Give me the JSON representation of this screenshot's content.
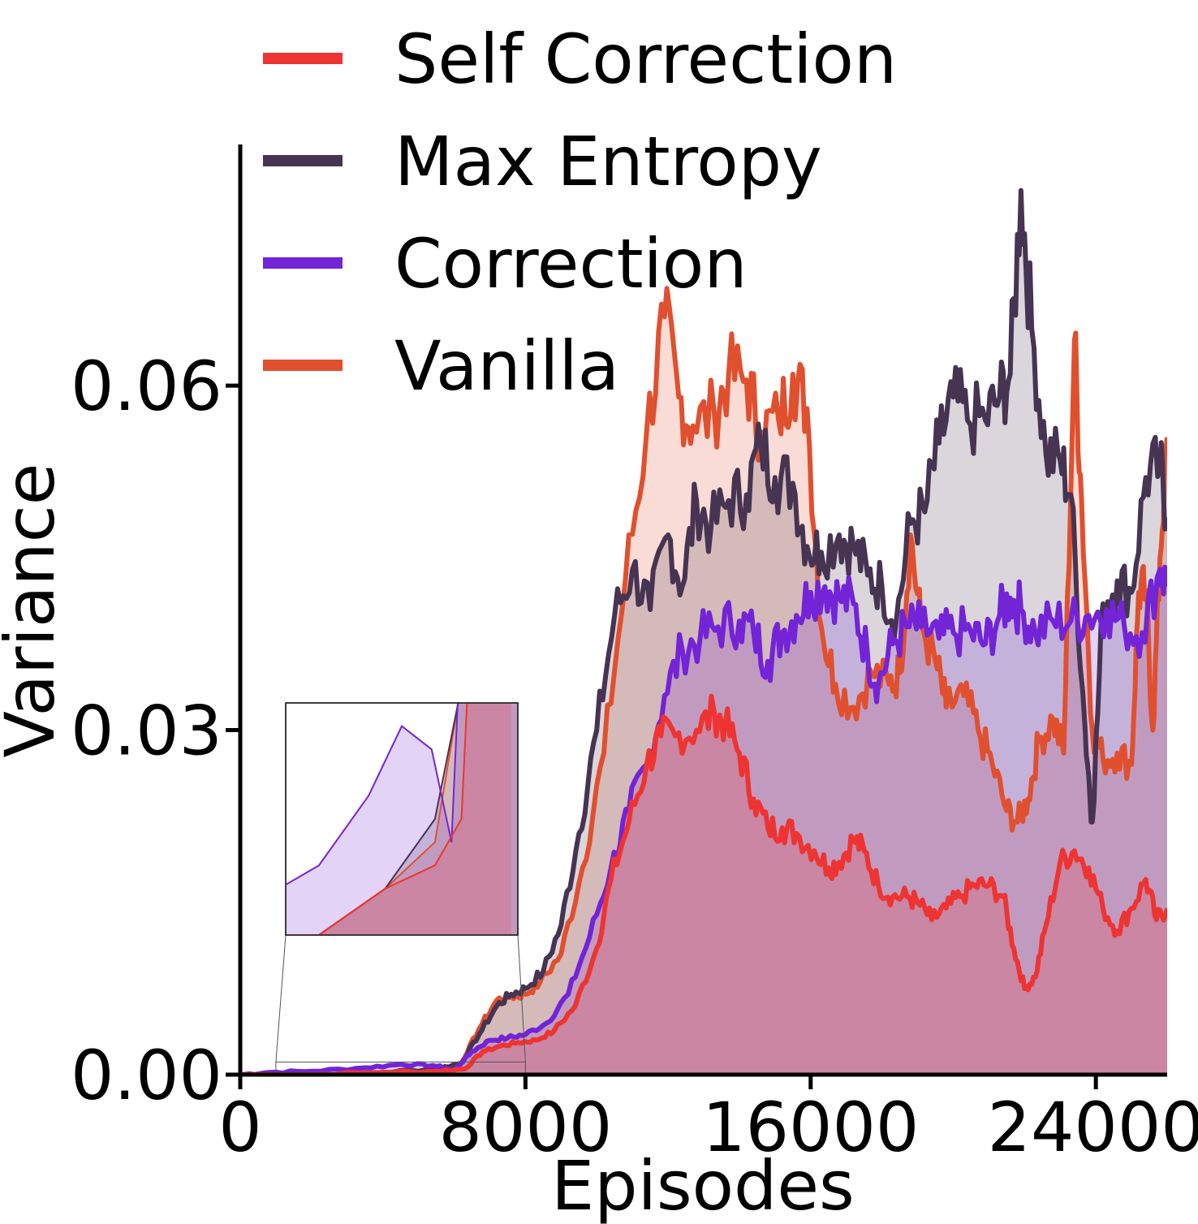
{
  "chart_data": {
    "type": "area",
    "title": "",
    "xlabel": "Episodes",
    "ylabel": "Variance",
    "xlim": [
      0,
      26000
    ],
    "ylim": [
      0,
      0.081
    ],
    "xticks": [
      0,
      8000,
      16000,
      24000
    ],
    "xtick_labels": [
      "0",
      "8000",
      "16000",
      "24000"
    ],
    "yticks": [
      0,
      0.03,
      0.06
    ],
    "ytick_labels": [
      "0.00",
      "0.03",
      "0.06"
    ],
    "grid": false,
    "legend_position": "top",
    "series": [
      {
        "name": "Vanilla",
        "color": "#e0502f",
        "points": [
          [
            0,
            0
          ],
          [
            2000,
            0
          ],
          [
            4000,
            0.0002
          ],
          [
            5500,
            0.0004
          ],
          [
            6200,
            0.001
          ],
          [
            6700,
            0.004
          ],
          [
            7200,
            0.0065
          ],
          [
            7600,
            0.0068
          ],
          [
            8000,
            0.007
          ],
          [
            8400,
            0.008
          ],
          [
            9000,
            0.0105
          ],
          [
            9600,
            0.018
          ],
          [
            10200,
            0.028
          ],
          [
            10800,
            0.043
          ],
          [
            11400,
            0.056
          ],
          [
            11900,
            0.066
          ],
          [
            12300,
            0.059
          ],
          [
            12700,
            0.0565
          ],
          [
            13300,
            0.0575
          ],
          [
            13700,
            0.061
          ],
          [
            14200,
            0.0605
          ],
          [
            14600,
            0.056
          ],
          [
            15100,
            0.057
          ],
          [
            15500,
            0.061
          ],
          [
            15900,
            0.058
          ],
          [
            16300,
            0.039
          ],
          [
            16700,
            0.034
          ],
          [
            17200,
            0.032
          ],
          [
            17700,
            0.035
          ],
          [
            18200,
            0.034
          ],
          [
            18500,
            0.035
          ],
          [
            18800,
            0.047
          ],
          [
            19100,
            0.039
          ],
          [
            19500,
            0.036
          ],
          [
            19800,
            0.032
          ],
          [
            20300,
            0.033
          ],
          [
            20700,
            0.03
          ],
          [
            21100,
            0.027
          ],
          [
            21500,
            0.023
          ],
          [
            21800,
            0.022
          ],
          [
            22100,
            0.024
          ],
          [
            22400,
            0.029
          ],
          [
            22800,
            0.031
          ],
          [
            23100,
            0.028
          ],
          [
            23400,
            0.064
          ],
          [
            23600,
            0.05
          ],
          [
            23900,
            0.03
          ],
          [
            24200,
            0.0275
          ],
          [
            24600,
            0.028
          ],
          [
            25000,
            0.027
          ],
          [
            25200,
            0.042
          ],
          [
            25400,
            0.042
          ],
          [
            25600,
            0.03
          ],
          [
            25800,
            0.045
          ],
          [
            26000,
            0.0555
          ]
        ]
      },
      {
        "name": "Max Entropy",
        "color": "#463452",
        "points": [
          [
            0,
            0
          ],
          [
            2000,
            0
          ],
          [
            4000,
            0.0002
          ],
          [
            5500,
            0.0005
          ],
          [
            6200,
            0.001
          ],
          [
            6700,
            0.0035
          ],
          [
            7200,
            0.006
          ],
          [
            7600,
            0.007
          ],
          [
            8000,
            0.0075
          ],
          [
            8500,
            0.009
          ],
          [
            9000,
            0.013
          ],
          [
            9500,
            0.021
          ],
          [
            10000,
            0.03
          ],
          [
            10500,
            0.04
          ],
          [
            11000,
            0.044
          ],
          [
            11500,
            0.0405
          ],
          [
            12000,
            0.047
          ],
          [
            12400,
            0.0425
          ],
          [
            12800,
            0.05
          ],
          [
            13200,
            0.0475
          ],
          [
            13700,
            0.05
          ],
          [
            14200,
            0.0505
          ],
          [
            14600,
            0.055
          ],
          [
            15000,
            0.052
          ],
          [
            15500,
            0.0515
          ],
          [
            15900,
            0.046
          ],
          [
            16300,
            0.0455
          ],
          [
            16800,
            0.047
          ],
          [
            17200,
            0.046
          ],
          [
            17600,
            0.0435
          ],
          [
            18000,
            0.0425
          ],
          [
            18400,
            0.0395
          ],
          [
            18800,
            0.048
          ],
          [
            19200,
            0.049
          ],
          [
            19600,
            0.055
          ],
          [
            20000,
            0.059
          ],
          [
            20400,
            0.057
          ],
          [
            20900,
            0.057
          ],
          [
            21300,
            0.059
          ],
          [
            21600,
            0.061
          ],
          [
            21900,
            0.077
          ],
          [
            22200,
            0.065
          ],
          [
            22600,
            0.054
          ],
          [
            23000,
            0.0535
          ],
          [
            23300,
            0.0505
          ],
          [
            23700,
            0.03
          ],
          [
            23900,
            0.022
          ],
          [
            24200,
            0.041
          ],
          [
            24600,
            0.043
          ],
          [
            25000,
            0.042
          ],
          [
            25400,
            0.052
          ],
          [
            25800,
            0.053
          ],
          [
            26000,
            0.0485
          ]
        ]
      },
      {
        "name": "Correction",
        "color": "#7224d6",
        "points": [
          [
            0,
            0
          ],
          [
            800,
            0.0002
          ],
          [
            2000,
            0.0003
          ],
          [
            3500,
            0.0006
          ],
          [
            4500,
            0.0009
          ],
          [
            5400,
            0.0008
          ],
          [
            6000,
            0.0004
          ],
          [
            6500,
            0.002
          ],
          [
            7000,
            0.003
          ],
          [
            7500,
            0.0032
          ],
          [
            8000,
            0.0035
          ],
          [
            8600,
            0.0045
          ],
          [
            9200,
            0.007
          ],
          [
            9800,
            0.012
          ],
          [
            10400,
            0.018
          ],
          [
            10900,
            0.023
          ],
          [
            11400,
            0.027
          ],
          [
            11900,
            0.033
          ],
          [
            12400,
            0.037
          ],
          [
            12900,
            0.038
          ],
          [
            13400,
            0.039
          ],
          [
            14000,
            0.0395
          ],
          [
            14400,
            0.0385
          ],
          [
            14800,
            0.036
          ],
          [
            15200,
            0.0385
          ],
          [
            15600,
            0.04
          ],
          [
            16000,
            0.042
          ],
          [
            16400,
            0.0425
          ],
          [
            16800,
            0.0415
          ],
          [
            17200,
            0.041
          ],
          [
            17600,
            0.0365
          ],
          [
            17900,
            0.034
          ],
          [
            18300,
            0.0375
          ],
          [
            18700,
            0.039
          ],
          [
            19100,
            0.039
          ],
          [
            19600,
            0.038
          ],
          [
            20000,
            0.0385
          ],
          [
            20500,
            0.0385
          ],
          [
            20900,
            0.0375
          ],
          [
            21300,
            0.04
          ],
          [
            21600,
            0.0415
          ],
          [
            21900,
            0.0405
          ],
          [
            22300,
            0.0385
          ],
          [
            22800,
            0.0395
          ],
          [
            23300,
            0.0395
          ],
          [
            23800,
            0.04
          ],
          [
            24300,
            0.0405
          ],
          [
            24800,
            0.039
          ],
          [
            25300,
            0.0385
          ],
          [
            25800,
            0.044
          ],
          [
            26000,
            0.0425
          ]
        ]
      },
      {
        "name": "Self Correction",
        "color": "#ee3432",
        "points": [
          [
            0,
            0
          ],
          [
            2000,
            0
          ],
          [
            4000,
            0.0002
          ],
          [
            5500,
            0.0003
          ],
          [
            6300,
            0.0005
          ],
          [
            6800,
            0.002
          ],
          [
            7300,
            0.0025
          ],
          [
            7800,
            0.0028
          ],
          [
            8300,
            0.003
          ],
          [
            8800,
            0.0038
          ],
          [
            9400,
            0.006
          ],
          [
            10000,
            0.011
          ],
          [
            10400,
            0.017
          ],
          [
            10900,
            0.022
          ],
          [
            11400,
            0.027
          ],
          [
            11800,
            0.0295
          ],
          [
            12200,
            0.0295
          ],
          [
            12800,
            0.03
          ],
          [
            13300,
            0.0315
          ],
          [
            13600,
            0.0305
          ],
          [
            14000,
            0.028
          ],
          [
            14400,
            0.024
          ],
          [
            14800,
            0.0215
          ],
          [
            15200,
            0.0215
          ],
          [
            15600,
            0.021
          ],
          [
            16100,
            0.0195
          ],
          [
            16500,
            0.018
          ],
          [
            16800,
            0.0185
          ],
          [
            17200,
            0.0205
          ],
          [
            17500,
            0.0195
          ],
          [
            17900,
            0.0165
          ],
          [
            18300,
            0.0155
          ],
          [
            18700,
            0.0155
          ],
          [
            19000,
            0.015
          ],
          [
            19400,
            0.0135
          ],
          [
            19800,
            0.0145
          ],
          [
            20200,
            0.0155
          ],
          [
            20600,
            0.0165
          ],
          [
            21000,
            0.0165
          ],
          [
            21400,
            0.0155
          ],
          [
            21700,
            0.011
          ],
          [
            22000,
            0.0075
          ],
          [
            22300,
            0.0085
          ],
          [
            22600,
            0.013
          ],
          [
            23000,
            0.0185
          ],
          [
            23400,
            0.0195
          ],
          [
            23800,
            0.018
          ],
          [
            24200,
            0.0145
          ],
          [
            24600,
            0.0125
          ],
          [
            25000,
            0.0145
          ],
          [
            25400,
            0.017
          ],
          [
            25700,
            0.0135
          ],
          [
            26000,
            0.0145
          ]
        ]
      }
    ],
    "legend": [
      "Self Correction",
      "Max Entropy",
      "Correction",
      "Vanilla"
    ],
    "inset": {
      "description_visible": "zoomed view of early episodes",
      "xlim": [
        1000,
        8000
      ],
      "ylim": [
        0,
        0.001
      ]
    }
  }
}
